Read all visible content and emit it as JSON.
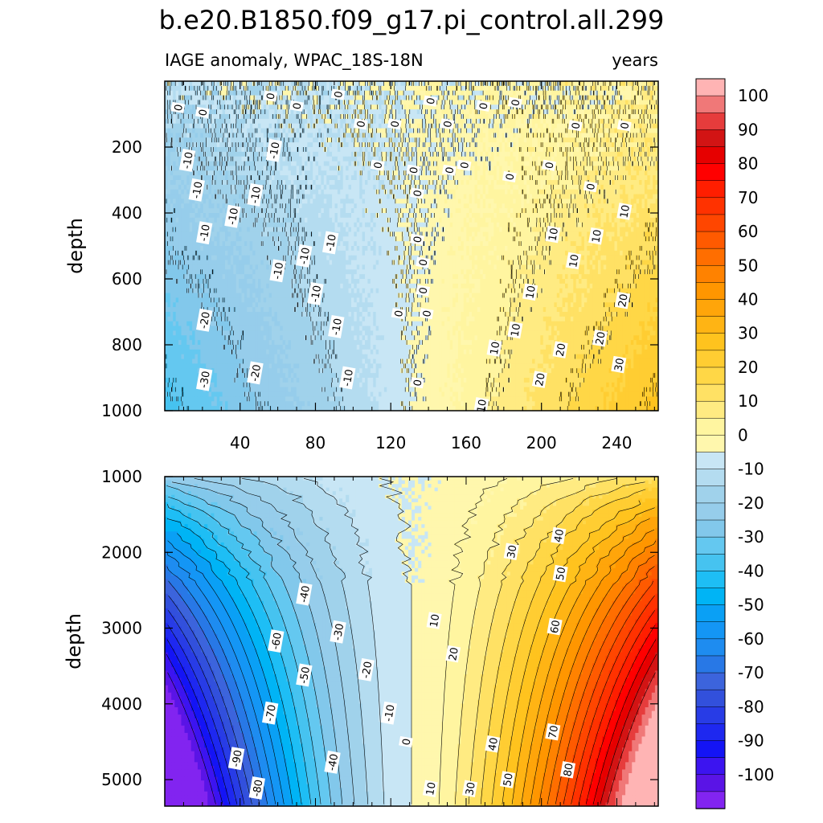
{
  "title": "b.e20.B1850.f09_g17.pi_control.all.299",
  "chart_data": [
    {
      "type": "heatmap",
      "panel": "upper",
      "subtitle_left": "IAGE anomaly, WPAC_18S-18N",
      "subtitle_right": "years",
      "ylabel": "depth",
      "xlabel": "",
      "xlim": [
        0,
        262
      ],
      "ylim": [
        1000,
        0
      ],
      "xticks": [
        40,
        80,
        120,
        160,
        200,
        240
      ],
      "xtick_labels": [
        "40",
        "80",
        "120",
        "160",
        "200",
        "240"
      ],
      "yticks": [
        200,
        400,
        600,
        800,
        1000
      ],
      "ytick_labels": [
        "200",
        "400",
        "600",
        "800",
        "1000"
      ],
      "contour_labels": [
        {
          "text": "0",
          "x": 7,
          "y": 80
        },
        {
          "text": "0",
          "x": 20,
          "y": 95
        },
        {
          "text": "0",
          "x": 56,
          "y": 45
        },
        {
          "text": "0",
          "x": 70,
          "y": 75
        },
        {
          "text": "0",
          "x": 92,
          "y": 40
        },
        {
          "text": "0",
          "x": 104,
          "y": 130
        },
        {
          "text": "0",
          "x": 122,
          "y": 130
        },
        {
          "text": "0",
          "x": 141,
          "y": 60
        },
        {
          "text": "0",
          "x": 150,
          "y": 130
        },
        {
          "text": "0",
          "x": 169,
          "y": 75
        },
        {
          "text": "0",
          "x": 186,
          "y": 65
        },
        {
          "text": "0",
          "x": 218,
          "y": 135
        },
        {
          "text": "0",
          "x": 244,
          "y": 135
        },
        {
          "text": "0",
          "x": 113,
          "y": 255
        },
        {
          "text": "0",
          "x": 132,
          "y": 270
        },
        {
          "text": "0",
          "x": 134,
          "y": 340
        },
        {
          "text": "0",
          "x": 151,
          "y": 270
        },
        {
          "text": "0",
          "x": 159,
          "y": 255
        },
        {
          "text": "0",
          "x": 183,
          "y": 290
        },
        {
          "text": "0",
          "x": 204,
          "y": 255
        },
        {
          "text": "0",
          "x": 226,
          "y": 320
        },
        {
          "text": "0",
          "x": 134,
          "y": 480
        },
        {
          "text": "0",
          "x": 137,
          "y": 550
        },
        {
          "text": "0",
          "x": 137,
          "y": 635
        },
        {
          "text": "0",
          "x": 124,
          "y": 705
        },
        {
          "text": "0",
          "x": 139,
          "y": 705
        },
        {
          "text": "0",
          "x": 134,
          "y": 915
        },
        {
          "text": "-10",
          "x": 12,
          "y": 240
        },
        {
          "text": "-10",
          "x": 58,
          "y": 210
        },
        {
          "text": "-10",
          "x": 17,
          "y": 330
        },
        {
          "text": "-10",
          "x": 48,
          "y": 345
        },
        {
          "text": "-10",
          "x": 36,
          "y": 410
        },
        {
          "text": "-10",
          "x": 21,
          "y": 460
        },
        {
          "text": "-10",
          "x": 88,
          "y": 490
        },
        {
          "text": "-10",
          "x": 74,
          "y": 530
        },
        {
          "text": "-10",
          "x": 60,
          "y": 575
        },
        {
          "text": "-10",
          "x": 80,
          "y": 645
        },
        {
          "text": "-10",
          "x": 91,
          "y": 745
        },
        {
          "text": "-10",
          "x": 97,
          "y": 900
        },
        {
          "text": "-20",
          "x": 21,
          "y": 725
        },
        {
          "text": "-20",
          "x": 48,
          "y": 885
        },
        {
          "text": "-30",
          "x": 21,
          "y": 905
        },
        {
          "text": "10",
          "x": 244,
          "y": 395
        },
        {
          "text": "10",
          "x": 206,
          "y": 465
        },
        {
          "text": "10",
          "x": 229,
          "y": 470
        },
        {
          "text": "10",
          "x": 217,
          "y": 545
        },
        {
          "text": "10",
          "x": 194,
          "y": 640
        },
        {
          "text": "10",
          "x": 186,
          "y": 755
        },
        {
          "text": "10",
          "x": 175,
          "y": 810
        },
        {
          "text": "10",
          "x": 168,
          "y": 985
        },
        {
          "text": "20",
          "x": 243,
          "y": 665
        },
        {
          "text": "20",
          "x": 231,
          "y": 780
        },
        {
          "text": "20",
          "x": 210,
          "y": 815
        },
        {
          "text": "20",
          "x": 199,
          "y": 905
        },
        {
          "text": "30",
          "x": 241,
          "y": 860
        }
      ]
    },
    {
      "type": "heatmap",
      "panel": "lower",
      "ylabel": "depth",
      "xlim": [
        0,
        262
      ],
      "ylim": [
        5350,
        1000
      ],
      "yticks": [
        1000,
        2000,
        3000,
        4000,
        5000
      ],
      "ytick_labels": [
        "1000",
        "2000",
        "3000",
        "4000",
        "5000"
      ],
      "contour_labels": [
        {
          "text": "-40",
          "x": 74,
          "y": 2550
        },
        {
          "text": "-30",
          "x": 92,
          "y": 3050
        },
        {
          "text": "-60",
          "x": 59,
          "y": 3170
        },
        {
          "text": "-50",
          "x": 74,
          "y": 3620
        },
        {
          "text": "-20",
          "x": 107,
          "y": 3550
        },
        {
          "text": "-70",
          "x": 56,
          "y": 4120
        },
        {
          "text": "-10",
          "x": 119,
          "y": 4120
        },
        {
          "text": "0",
          "x": 128,
          "y": 4500
        },
        {
          "text": "-90",
          "x": 38,
          "y": 4720
        },
        {
          "text": "-40",
          "x": 89,
          "y": 4770
        },
        {
          "text": "-80",
          "x": 49,
          "y": 5110
        },
        {
          "text": "30",
          "x": 184,
          "y": 1990
        },
        {
          "text": "40",
          "x": 209,
          "y": 1780
        },
        {
          "text": "50",
          "x": 210,
          "y": 2280
        },
        {
          "text": "10",
          "x": 143,
          "y": 2900
        },
        {
          "text": "60",
          "x": 207,
          "y": 2980
        },
        {
          "text": "20",
          "x": 153,
          "y": 3340
        },
        {
          "text": "70",
          "x": 206,
          "y": 4370
        },
        {
          "text": "40",
          "x": 174,
          "y": 4530
        },
        {
          "text": "80",
          "x": 214,
          "y": 4870
        },
        {
          "text": "50",
          "x": 182,
          "y": 5000
        },
        {
          "text": "10",
          "x": 141,
          "y": 5120
        },
        {
          "text": "30",
          "x": 162,
          "y": 5120
        }
      ]
    },
    {
      "type": "colorbar",
      "levels": [
        -105,
        -100,
        -95,
        -90,
        -85,
        -80,
        -75,
        -70,
        -65,
        -60,
        -55,
        -50,
        -45,
        -40,
        -35,
        -30,
        -25,
        -20,
        -15,
        -10,
        -5,
        0,
        5,
        10,
        15,
        20,
        25,
        30,
        35,
        40,
        45,
        50,
        55,
        60,
        65,
        70,
        75,
        80,
        85,
        90,
        95,
        100,
        105
      ],
      "colors": [
        "#8224f0",
        "#5a14e6",
        "#3c14f0",
        "#1414f5",
        "#1e28f0",
        "#283ce6",
        "#3250dc",
        "#3c64dc",
        "#2878e6",
        "#1e8cf0",
        "#1496f5",
        "#0aa0f5",
        "#00b4f5",
        "#1ebef5",
        "#46c3f0",
        "#64c8f0",
        "#82c8eb",
        "#96cdeb",
        "#a0d2eb",
        "#b4dcf0",
        "#c8e6f5",
        "#fff7ad",
        "#fff5a0",
        "#ffeb82",
        "#ffe164",
        "#ffd746",
        "#ffcd32",
        "#ffc31e",
        "#ffb414",
        "#ffa50a",
        "#ff9600",
        "#ff8200",
        "#ff6e00",
        "#ff5a00",
        "#ff4600",
        "#ff3200",
        "#ff1e00",
        "#ff0000",
        "#e60000",
        "#d21414",
        "#e63c3c",
        "#f07878",
        "#ffb4b4"
      ],
      "tick_labels": [
        "100",
        "90",
        "80",
        "70",
        "60",
        "50",
        "40",
        "30",
        "20",
        "10",
        "0",
        "-10",
        "-20",
        "-30",
        "-40",
        "-50",
        "-60",
        "-70",
        "-80",
        "-90",
        "-100"
      ]
    }
  ]
}
